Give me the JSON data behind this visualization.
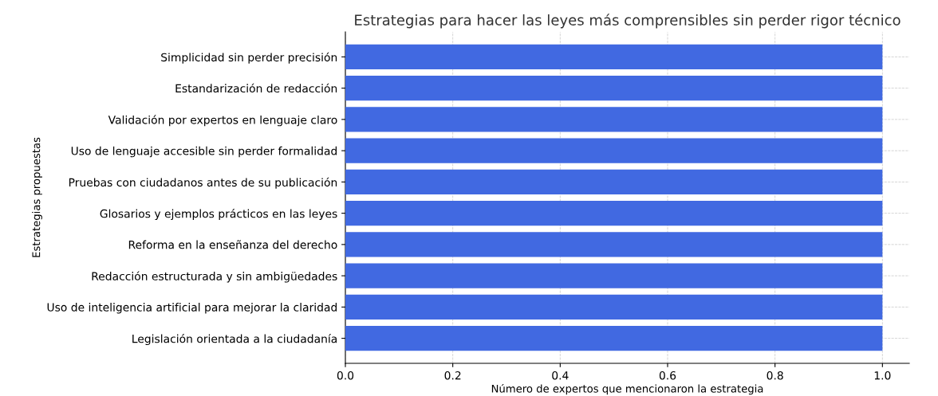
{
  "chart_data": {
    "type": "bar",
    "orientation": "horizontal",
    "title": "Estrategias para hacer las leyes más comprensibles sin perder rigor técnico",
    "xlabel": "Número de expertos que mencionaron la estrategia",
    "ylabel": "Estrategias propuestas",
    "categories": [
      "Simplicidad sin perder precisión",
      "Estandarización de redacción",
      "Validación por expertos en lenguaje claro",
      "Uso de lenguaje accesible sin perder formalidad",
      "Pruebas con ciudadanos antes de su publicación",
      "Glosarios y ejemplos prácticos en las leyes",
      "Reforma en la enseñanza del derecho",
      "Redacción estructurada y sin ambigüedades",
      "Uso de inteligencia artificial para mejorar la claridad",
      "Legislación orientada a la ciudadanía"
    ],
    "values": [
      1,
      1,
      1,
      1,
      1,
      1,
      1,
      1,
      1,
      1
    ],
    "color": "#4169e1",
    "xlim": [
      0,
      1.05
    ],
    "xticks": [
      {
        "value": 0,
        "label": "0.0"
      },
      {
        "value": 0.2,
        "label": "0.2"
      },
      {
        "value": 0.4,
        "label": "0.4"
      },
      {
        "value": 0.6,
        "label": "0.6"
      },
      {
        "value": 0.8,
        "label": "0.8"
      },
      {
        "value": 1,
        "label": "1.0"
      }
    ],
    "grid": true,
    "line_style": "dashed"
  }
}
